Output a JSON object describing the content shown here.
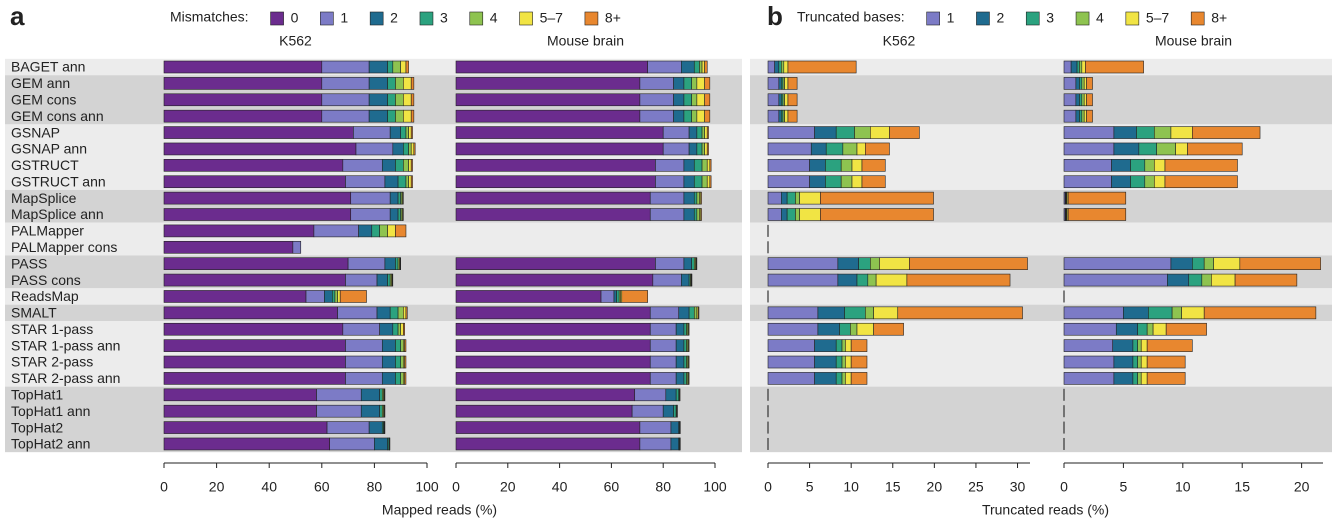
{
  "chart_data": [
    {
      "type": "bar",
      "orientation": "horizontal",
      "stacked": true,
      "label": "a",
      "legend_title": "Mismatches:",
      "x_label": "Mapped reads (%)",
      "categories": [
        "BAGET ann",
        "GEM ann",
        "GEM cons",
        "GEM cons ann",
        "GSNAP",
        "GSNAP ann",
        "GSTRUCT",
        "GSTRUCT ann",
        "MapSplice",
        "MapSplice ann",
        "PALMapper",
        "PALMapper cons",
        "PASS",
        "PASS cons",
        "ReadsMap",
        "SMALT",
        "STAR 1-pass",
        "STAR 1-pass ann",
        "STAR 2-pass",
        "STAR 2-pass ann",
        "TopHat1",
        "TopHat1 ann",
        "TopHat2",
        "TopHat2 ann"
      ],
      "series": [
        {
          "name": "0",
          "color": "#6b2c8e"
        },
        {
          "name": "1",
          "color": "#7c7bc6"
        },
        {
          "name": "2",
          "color": "#1f6b8f"
        },
        {
          "name": "3",
          "color": "#2ba27f"
        },
        {
          "name": "4",
          "color": "#8ec350"
        },
        {
          "name": "5–7",
          "color": "#f1e444"
        },
        {
          "name": "8+",
          "color": "#e8872f"
        }
      ],
      "facets": [
        {
          "title": "K562",
          "xlim": [
            0,
            100
          ],
          "xticks": [
            0,
            20,
            40,
            60,
            80,
            100
          ],
          "values": [
            [
              60,
              18,
              7,
              2,
              3,
              2,
              1
            ],
            [
              60,
              18,
              7,
              3,
              3,
              3,
              1
            ],
            [
              60,
              18,
              7,
              3,
              3,
              3,
              1
            ],
            [
              60,
              18,
              7,
              3,
              3,
              3,
              1
            ],
            [
              72,
              14,
              4,
              2,
              1,
              1,
              0.5
            ],
            [
              73,
              14,
              4,
              2,
              1,
              1,
              0.5
            ],
            [
              68,
              15,
              5,
              3,
              2,
              1,
              0.5
            ],
            [
              69,
              15,
              5,
              3,
              1,
              1,
              0.5
            ],
            [
              71,
              15,
              3,
              1,
              0.5,
              0.3,
              0.2
            ],
            [
              71,
              15,
              3,
              1,
              0.5,
              0.3,
              0.2
            ],
            [
              57,
              17,
              5,
              3,
              3,
              3,
              4
            ],
            [
              49,
              3,
              0,
              0,
              0,
              0,
              0
            ],
            [
              70,
              14,
              4,
              1,
              0.5,
              0.3,
              0.2
            ],
            [
              69,
              12,
              4,
              1,
              0.5,
              0.3,
              0.2
            ],
            [
              54,
              7,
              3,
              1,
              1,
              1,
              10
            ],
            [
              66,
              15,
              5,
              3,
              2,
              1,
              0.5
            ],
            [
              68,
              14,
              5,
              2,
              1,
              1,
              0.5
            ],
            [
              69,
              14,
              5,
              2,
              1,
              0.5,
              0.5
            ],
            [
              69,
              14,
              5,
              2,
              1,
              0.5,
              0.5
            ],
            [
              69,
              14,
              5,
              2,
              1,
              0.5,
              0.5
            ],
            [
              58,
              17,
              7,
              1,
              0.5,
              0.3,
              0.2
            ],
            [
              58,
              17,
              7,
              1,
              0.5,
              0.3,
              0.2
            ],
            [
              62,
              16,
              5,
              0.5,
              0.2,
              0.2,
              0.1
            ],
            [
              63,
              17,
              5,
              0.5,
              0.2,
              0.1,
              0.1
            ]
          ]
        },
        {
          "title": "Mouse brain",
          "xlim": [
            0,
            100
          ],
          "xticks": [
            0,
            20,
            40,
            60,
            80,
            100
          ],
          "values": [
            [
              74,
              13,
              5,
              2,
              1,
              1,
              1
            ],
            [
              71,
              13,
              4,
              3,
              2,
              3,
              2
            ],
            [
              71,
              13,
              4,
              3,
              2,
              3,
              2
            ],
            [
              71,
              13,
              4,
              3,
              2,
              3,
              2
            ],
            [
              80,
              10,
              3,
              2,
              1,
              1,
              0.5
            ],
            [
              80,
              10,
              3,
              2,
              1,
              1,
              0.5
            ],
            [
              77,
              11,
              4,
              3,
              2,
              1,
              0.5
            ],
            [
              77,
              11,
              4,
              3,
              2,
              1,
              0.5
            ],
            [
              75,
              13,
              4,
              1,
              1,
              0.5,
              0.3
            ],
            [
              75,
              13,
              4,
              1,
              1,
              0.5,
              0.3
            ],
            null,
            null,
            [
              77,
              11,
              3,
              1,
              0.5,
              0.3,
              0.2
            ],
            [
              76,
              11,
              3,
              0.5,
              0.3,
              0.2,
              0.1
            ],
            [
              56,
              5,
              1,
              1,
              0.5,
              0.5,
              10
            ],
            [
              75,
              11,
              4,
              2,
              1,
              0.5,
              0.3
            ],
            [
              75,
              10,
              3,
              1,
              0.5,
              0.3,
              0.2
            ],
            [
              75,
              10,
              3,
              1,
              0.5,
              0.3,
              0.2
            ],
            [
              75,
              10,
              3,
              1,
              0.5,
              0.3,
              0.2
            ],
            [
              75,
              10,
              3,
              1,
              0.5,
              0.3,
              0.2
            ],
            [
              69,
              12,
              4,
              1,
              0.3,
              0.1,
              0.1
            ],
            [
              68,
              12,
              4,
              1,
              0.3,
              0.1,
              0.1
            ],
            [
              71,
              12,
              3,
              0.3,
              0.1,
              0.1,
              0.1
            ],
            [
              71,
              12,
              3,
              0.3,
              0.1,
              0.1,
              0.1
            ]
          ]
        }
      ]
    },
    {
      "type": "bar",
      "orientation": "horizontal",
      "stacked": true,
      "label": "b",
      "legend_title": "Truncated bases:",
      "x_label": "Truncated reads (%)",
      "series": [
        {
          "name": "1",
          "color": "#7c7bc6"
        },
        {
          "name": "2",
          "color": "#1f6b8f"
        },
        {
          "name": "3",
          "color": "#2ba27f"
        },
        {
          "name": "4",
          "color": "#8ec350"
        },
        {
          "name": "5–7",
          "color": "#f1e444"
        },
        {
          "name": "8+",
          "color": "#e8872f"
        }
      ],
      "facets": [
        {
          "title": "K562",
          "xlim": [
            0,
            31.5
          ],
          "xticks": [
            0,
            5,
            10,
            15,
            20,
            25,
            30
          ],
          "values": [
            [
              0.8,
              0.5,
              0.3,
              0.3,
              0.5,
              8.2
            ],
            [
              1.3,
              0.3,
              0.2,
              0.2,
              0.4,
              1.1
            ],
            [
              1.3,
              0.3,
              0.2,
              0.2,
              0.4,
              1.1
            ],
            [
              1.3,
              0.3,
              0.2,
              0.2,
              0.4,
              1.1
            ],
            [
              5.6,
              2.6,
              2.2,
              1.9,
              2.3,
              3.6
            ],
            [
              5.2,
              1.8,
              2,
              1.7,
              1,
              2.9
            ],
            [
              5,
              1.9,
              1.9,
              1.3,
              1.2,
              2.8
            ],
            [
              5,
              1.9,
              1.9,
              1.3,
              1.2,
              2.8
            ],
            [
              1.6,
              0.7,
              1,
              0.5,
              2.5,
              13.6
            ],
            [
              1.6,
              0.7,
              1,
              0.5,
              2.5,
              13.6
            ],
            [
              0,
              0,
              0,
              0,
              0,
              0
            ],
            [
              0,
              0,
              0,
              0,
              0,
              0
            ],
            [
              8.4,
              2.5,
              1.4,
              1.1,
              3.6,
              14.2
            ],
            [
              8.4,
              2.3,
              1.3,
              1,
              3.7,
              12.4
            ],
            [
              0,
              0,
              0,
              0,
              0,
              0
            ],
            [
              6,
              3.2,
              2.5,
              1,
              2.9,
              15
            ],
            [
              6,
              2.6,
              1.3,
              0.8,
              2,
              3.6
            ],
            [
              5.6,
              2.6,
              0.7,
              0.4,
              0.7,
              1.9
            ],
            [
              5.6,
              2.6,
              0.7,
              0.4,
              0.7,
              1.9
            ],
            [
              5.6,
              2.6,
              0.7,
              0.4,
              0.7,
              1.9
            ],
            [
              0,
              0,
              0,
              0,
              0,
              0
            ],
            [
              0,
              0,
              0,
              0,
              0,
              0
            ],
            [
              0,
              0,
              0,
              0,
              0,
              0
            ],
            [
              0,
              0,
              0,
              0,
              0,
              0
            ]
          ]
        },
        {
          "title": "Mouse brain",
          "xlim": [
            0,
            21.8
          ],
          "xticks": [
            0,
            5,
            10,
            15,
            20
          ],
          "values": [
            [
              0.6,
              0.5,
              0.2,
              0.2,
              0.3,
              4.9
            ],
            [
              1,
              0.3,
              0.2,
              0.2,
              0.2,
              0.5
            ],
            [
              1,
              0.3,
              0.2,
              0.2,
              0.2,
              0.5
            ],
            [
              1,
              0.3,
              0.2,
              0.2,
              0.2,
              0.5
            ],
            [
              4.2,
              1.9,
              1.5,
              1.4,
              1.8,
              5.7
            ],
            [
              4.2,
              2.1,
              1.5,
              1.6,
              1,
              4.6
            ],
            [
              4,
              1.6,
              1.2,
              0.8,
              0.9,
              6.1
            ],
            [
              4,
              1.6,
              1.2,
              0.8,
              0.9,
              6.1
            ],
            [
              0.1,
              0.05,
              0.05,
              0.05,
              0.1,
              4.85
            ],
            [
              0.1,
              0.05,
              0.05,
              0.05,
              0.1,
              4.85
            ],
            null,
            null,
            [
              9,
              1.8,
              1,
              0.8,
              2.2,
              6.8
            ],
            [
              8.7,
              1.8,
              1.1,
              0.8,
              2,
              5.2
            ],
            [
              0,
              0,
              0,
              0,
              0,
              0
            ],
            [
              5,
              2.1,
              2,
              0.8,
              1.9,
              9.4
            ],
            [
              4.4,
              1.8,
              0.8,
              0.5,
              1.1,
              3.4
            ],
            [
              4.1,
              1.7,
              0.4,
              0.3,
              0.5,
              3.8
            ],
            [
              4.2,
              1.6,
              0.4,
              0.3,
              0.5,
              3.2
            ],
            [
              4.2,
              1.6,
              0.4,
              0.3,
              0.5,
              3.2
            ],
            [
              0,
              0,
              0,
              0,
              0,
              0
            ],
            [
              0,
              0,
              0,
              0,
              0,
              0
            ],
            [
              0,
              0,
              0,
              0,
              0,
              0
            ],
            [
              0,
              0,
              0,
              0,
              0,
              0
            ]
          ]
        }
      ]
    }
  ]
}
